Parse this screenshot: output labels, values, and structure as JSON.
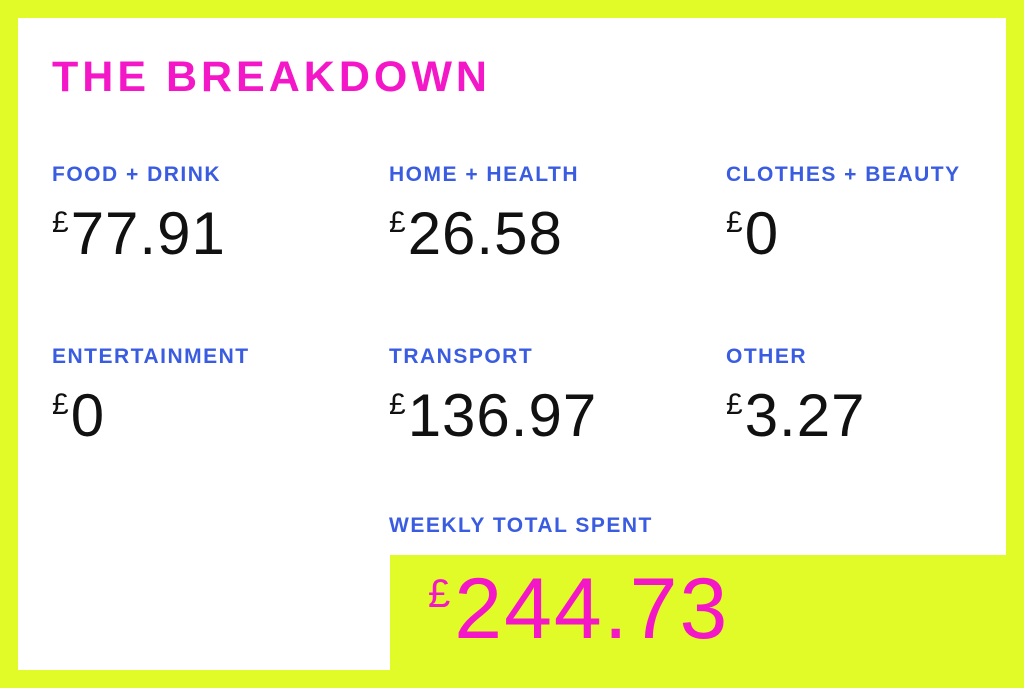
{
  "title": "THE BREAKDOWN",
  "currency_symbol": "£",
  "colors": {
    "background_yellow": "#e1fb28",
    "panel_white": "#ffffff",
    "title_pink": "#f317c8",
    "label_blue": "#3a5ce0",
    "amount_black": "#111111"
  },
  "categories": [
    {
      "label": "FOOD + DRINK",
      "amount": "77.91"
    },
    {
      "label": "HOME + HEALTH",
      "amount": "26.58"
    },
    {
      "label": "CLOTHES + BEAUTY",
      "amount": "0"
    },
    {
      "label": "ENTERTAINMENT",
      "amount": "0"
    },
    {
      "label": "TRANSPORT",
      "amount": "136.97"
    },
    {
      "label": "OTHER",
      "amount": "3.27"
    }
  ],
  "total": {
    "label": "WEEKLY TOTAL SPENT",
    "amount": "244.73"
  }
}
